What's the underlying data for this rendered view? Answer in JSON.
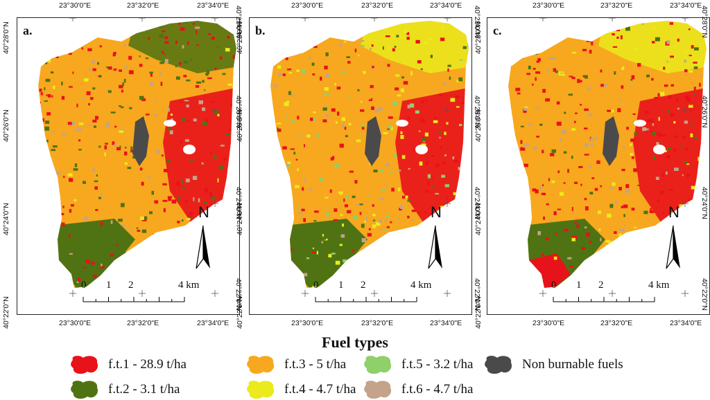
{
  "panels": [
    {
      "label": "a.",
      "variant": "a"
    },
    {
      "label": "b.",
      "variant": "b"
    },
    {
      "label": "c.",
      "variant": "c"
    }
  ],
  "coords": {
    "lon": [
      "23°30'0\"E",
      "23°32'0\"E",
      "23°34'0\"E"
    ],
    "lat": [
      "40°28'0\"N",
      "40°26'0\"N",
      "40°24'0\"N",
      "40°22'0\"N"
    ]
  },
  "north_label": "N",
  "scale": {
    "ticks": [
      "0",
      "1",
      "2",
      "4 km"
    ]
  },
  "title": "Fuel types",
  "legend": [
    {
      "label": "f.t.1 - 28.9 t/ha",
      "color": "#e8121a"
    },
    {
      "label": "f.t.3 - 5 t/ha",
      "color": "#f7a81e"
    },
    {
      "label": "f.t.5 - 3.2  t/ha",
      "color": "#8fd06a"
    },
    {
      "label": "Non burnable fuels",
      "color": "#4a4a4a"
    },
    {
      "label": "f.t.2 - 3.1 t/ha",
      "color": "#4f7312"
    },
    {
      "label": "f.t.4 - 4.7 t/ha",
      "color": "#eaea1c"
    },
    {
      "label": "f.t.6 - 4.7 t/ha",
      "color": "#c4a38a"
    }
  ]
}
